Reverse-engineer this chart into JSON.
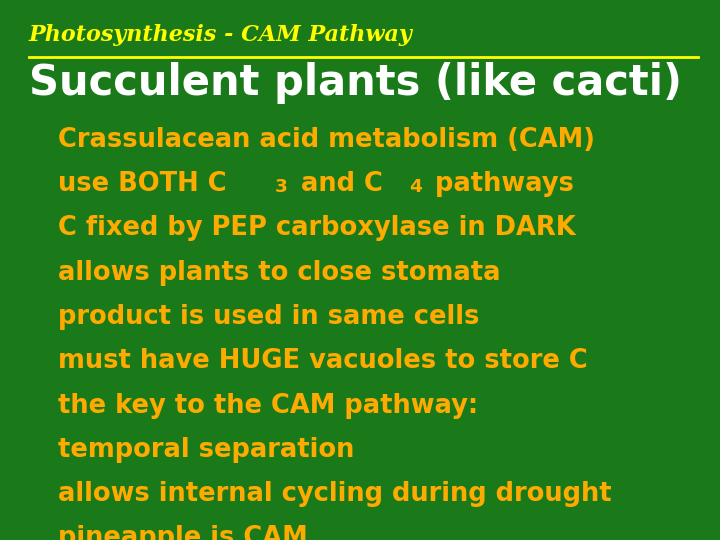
{
  "bg_color": "#1a7a1a",
  "title_text": "Photosynthesis - CAM Pathway",
  "title_color": "#ffff00",
  "title_fontsize": 16,
  "subtitle_text": "Succulent plants (like cacti)",
  "subtitle_color": "#ffffff",
  "subtitle_fontsize": 30,
  "line_color": "#ffff00",
  "bullet_color": "#ffaa00",
  "bullet_fontsize": 18.5,
  "bullets": [
    {
      "text": "Crassulacean acid metabolism (CAM)",
      "has_sub": false
    },
    {
      "text": "use BOTH C",
      "has_sub": true,
      "sub3": "3",
      "mid": " and C",
      "sub4": "4",
      "end": " pathways"
    },
    {
      "text": "C fixed by PEP carboxylase in DARK",
      "has_sub": false
    },
    {
      "text": "allows plants to close stomata",
      "has_sub": false
    },
    {
      "text": "product is used in same cells",
      "has_sub": false
    },
    {
      "text": "must have HUGE vacuoles to store C",
      "has_sub": false
    },
    {
      "text": "the key to the CAM pathway:",
      "has_sub": false
    },
    {
      "text": "temporal separation",
      "has_sub": false
    },
    {
      "text": "allows internal cycling during drought",
      "has_sub": false
    },
    {
      "text": "pineapple is CAM",
      "has_sub": false
    }
  ]
}
